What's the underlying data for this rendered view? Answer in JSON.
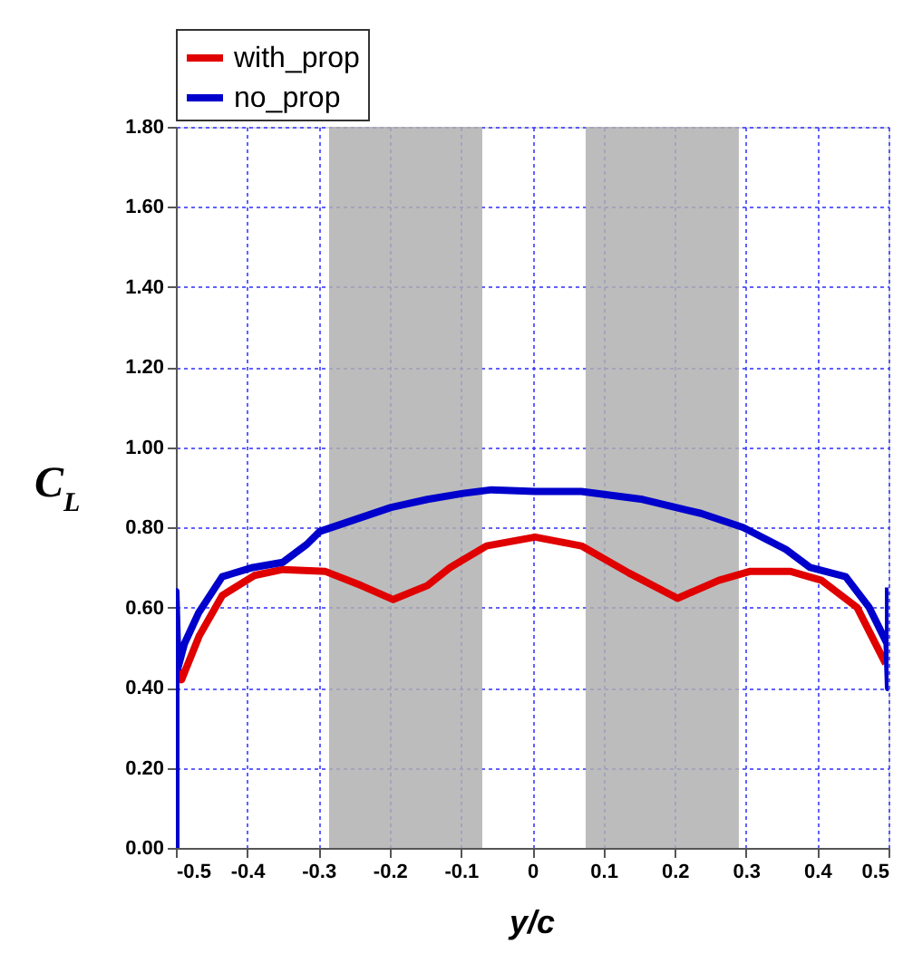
{
  "chart_data": {
    "type": "line",
    "xlabel": "y/c",
    "ylabel": "C$_{L}$",
    "xlim": [
      -0.5,
      0.5
    ],
    "xticks": [
      -0.5,
      -0.4,
      -0.3,
      -0.2,
      -0.1,
      0,
      0.1,
      0.2,
      0.3,
      0.4,
      0.5
    ],
    "ylim": [
      0,
      1.8
    ],
    "yticks": [
      {
        "value": 0,
        "label": "0.00"
      },
      {
        "value": 0.2,
        "label": "0.20"
      },
      {
        "value": 0.4,
        "label": "0.40"
      },
      {
        "value": 0.6,
        "label": "0.60"
      },
      {
        "value": 0.8,
        "label": "0.80"
      },
      {
        "value": 1.0,
        "label": "1.00"
      },
      {
        "value": 1.2,
        "label": "1.20"
      },
      {
        "value": 1.4,
        "label": "1.40"
      },
      {
        "value": 1.6,
        "label": "1.60"
      },
      {
        "value": 1.8,
        "label": "1.80"
      }
    ],
    "grid": true,
    "legend": "top left",
    "line_style": "solid",
    "marker": "none",
    "bands": [
      {
        "axis": "x",
        "from": -0.285,
        "to": -0.07,
        "color": "#b0b0b0"
      },
      {
        "axis": "x",
        "from": 0.075,
        "to": 0.29,
        "color": "#b0b0b0"
      }
    ],
    "series": [
      {
        "name": "with_prop",
        "color": "#e00000",
        "x": [
          -0.498,
          -0.492,
          -0.467,
          -0.435,
          -0.39,
          -0.35,
          -0.29,
          -0.24,
          -0.195,
          -0.147,
          -0.115,
          -0.064,
          0.004,
          0.069,
          0.136,
          0.204,
          0.262,
          0.305,
          0.363,
          0.406,
          0.456,
          0.496
        ],
        "values": [
          0.45,
          0.42,
          0.53,
          0.63,
          0.68,
          0.695,
          0.69,
          0.655,
          0.62,
          0.655,
          0.7,
          0.754,
          0.776,
          0.754,
          0.686,
          0.623,
          0.668,
          0.69,
          0.69,
          0.668,
          0.6,
          0.46
        ]
      },
      {
        "name": "no_prop",
        "color": "#0000cc",
        "x": [
          -0.5,
          -0.5,
          -0.497,
          -0.488,
          -0.468,
          -0.435,
          -0.392,
          -0.35,
          -0.316,
          -0.298,
          -0.248,
          -0.198,
          -0.147,
          -0.097,
          -0.057,
          0.004,
          0.069,
          0.155,
          0.237,
          0.296,
          0.356,
          0.39,
          0.44,
          0.473,
          0.498,
          0.5,
          0.5
        ],
        "values": [
          0,
          0.64,
          0.45,
          0.51,
          0.587,
          0.677,
          0.7,
          0.713,
          0.758,
          0.79,
          0.82,
          0.85,
          0.87,
          0.885,
          0.894,
          0.89,
          0.89,
          0.87,
          0.835,
          0.8,
          0.745,
          0.7,
          0.677,
          0.6,
          0.51,
          0.4,
          0.65
        ]
      }
    ]
  }
}
